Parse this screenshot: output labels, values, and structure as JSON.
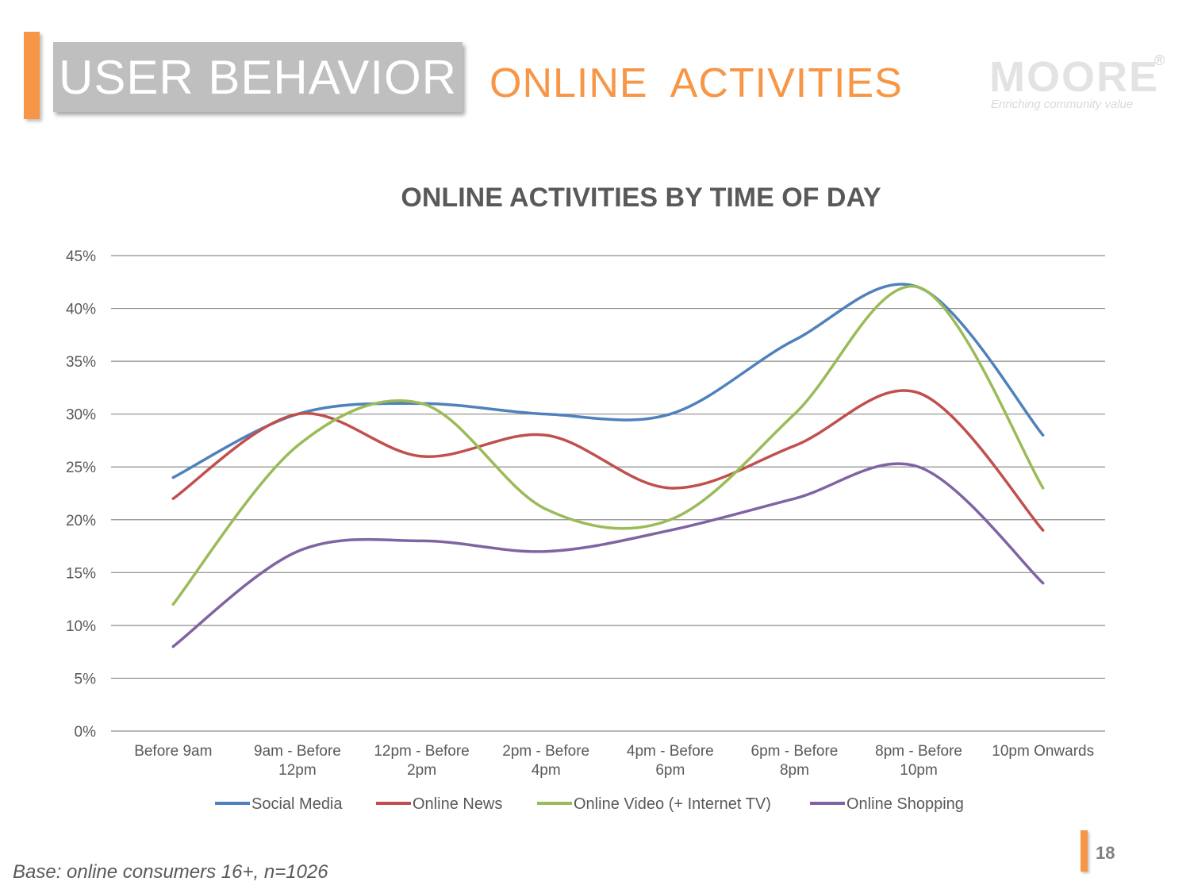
{
  "header": {
    "section_title": "USER BEHAVIOR",
    "subtitle": "ONLINE  ACTIVITIES"
  },
  "logo": {
    "wordmark": "MOORE",
    "registered": "®",
    "tagline": "Enriching community value"
  },
  "footer": {
    "base_note": "Base: online consumers 16+, n=1026",
    "page_number": "18"
  },
  "colors": {
    "accent": "#f79646",
    "section_box": "#bfbfbf",
    "gridline": "#8c8c8c",
    "axis_text": "#595959",
    "title_text": "#595959"
  },
  "chart_data": {
    "type": "line",
    "title": "ONLINE ACTIVITIES BY TIME OF DAY",
    "xlabel": "",
    "ylabel": "",
    "ylim": [
      0,
      45
    ],
    "yticks": [
      0,
      5,
      10,
      15,
      20,
      25,
      30,
      35,
      40,
      45
    ],
    "ytick_labels": [
      "0%",
      "5%",
      "10%",
      "15%",
      "20%",
      "25%",
      "30%",
      "35%",
      "40%",
      "45%"
    ],
    "grid": true,
    "smooth": true,
    "legend_position": "bottom",
    "categories": [
      [
        "Before 9am"
      ],
      [
        "9am - Before",
        "12pm"
      ],
      [
        "12pm - Before",
        "2pm"
      ],
      [
        "2pm - Before",
        "4pm"
      ],
      [
        "4pm - Before",
        "6pm"
      ],
      [
        "6pm - Before",
        "8pm"
      ],
      [
        "8pm - Before",
        "10pm"
      ],
      [
        "10pm Onwards"
      ]
    ],
    "series": [
      {
        "name": "Social Media",
        "color": "#4f81bd",
        "values": [
          24,
          30,
          31,
          30,
          30,
          37,
          42,
          28
        ]
      },
      {
        "name": "Online News",
        "color": "#c0504d",
        "values": [
          22,
          30,
          26,
          28,
          23,
          27,
          32,
          19
        ]
      },
      {
        "name": "Online Video (+ Internet TV)",
        "color": "#9bbb59",
        "values": [
          12,
          27,
          31,
          21,
          20,
          30,
          42,
          23
        ]
      },
      {
        "name": "Online Shopping",
        "color": "#8064a2",
        "values": [
          8,
          17,
          18,
          17,
          19,
          22,
          25,
          14
        ]
      }
    ]
  }
}
